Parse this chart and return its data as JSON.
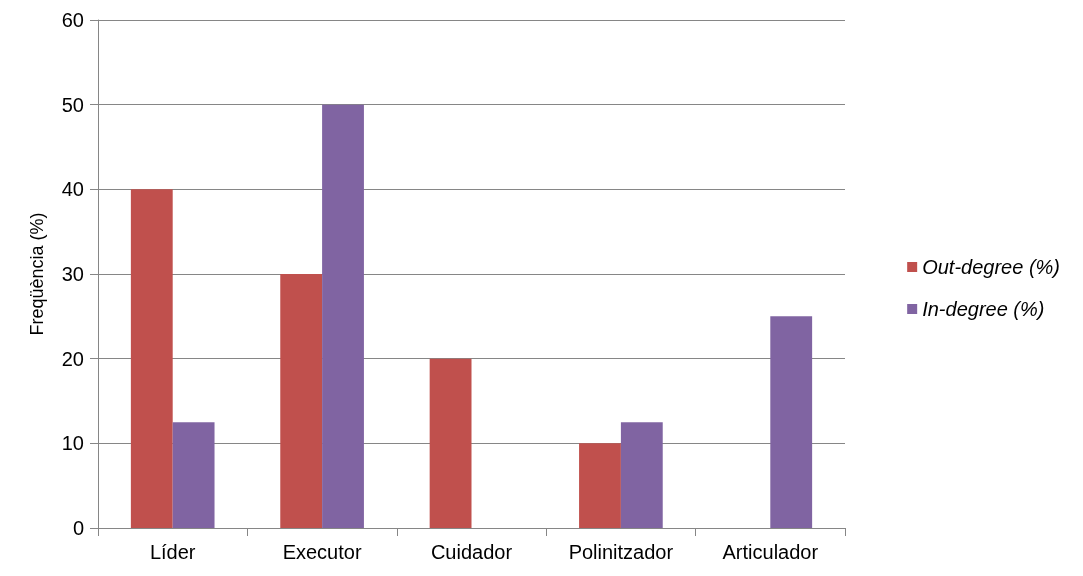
{
  "chart_data": {
    "type": "bar",
    "ylabel": "Freqüència (%)",
    "categories": [
      "Líder",
      "Executor",
      "Cuidador",
      "Polinitzador",
      "Articulador"
    ],
    "series": [
      {
        "name": "Out-degree (%)",
        "color": "#c0504d",
        "values": [
          40,
          30,
          20,
          10,
          0
        ]
      },
      {
        "name": "In-degree (%)",
        "color": "#8064a2",
        "values": [
          12.5,
          50,
          0,
          12.5,
          25
        ]
      }
    ],
    "ylim": [
      0,
      60
    ],
    "yticks": [
      0,
      10,
      20,
      30,
      40,
      50,
      60
    ],
    "grid": "y",
    "legend": "right"
  }
}
